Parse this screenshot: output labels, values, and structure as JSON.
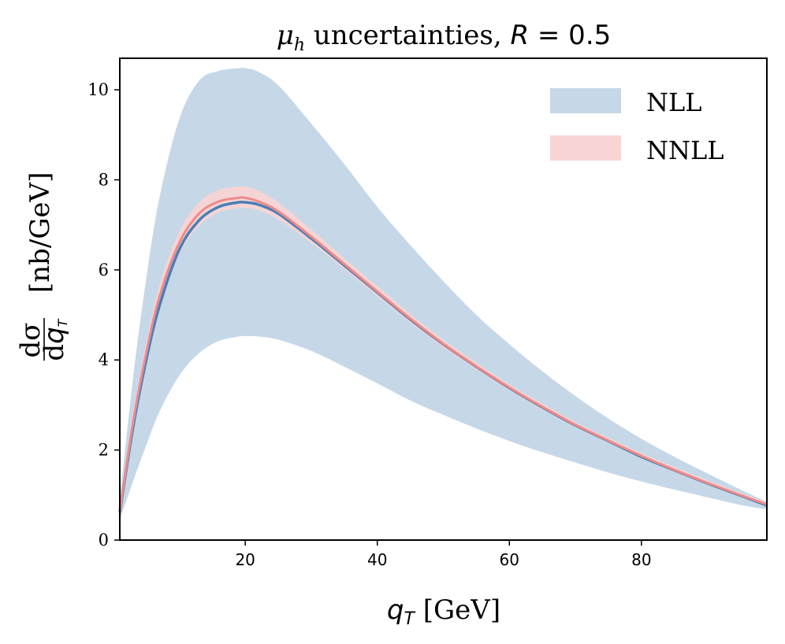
{
  "chart_data": {
    "type": "area",
    "title": "μh uncertainties, R = 0.5",
    "title_parts": {
      "sym": "μ",
      "sub": "h",
      "mid": " uncertainties, ",
      "var": "R",
      "eq": " = 0.5"
    },
    "xlabel": "qT [GeV]",
    "xlabel_parts": {
      "sym": "q",
      "sub": "T",
      "unit": " [GeV]"
    },
    "ylabel": "dσ/dqT [nb/GeV]",
    "ylabel_parts": {
      "num": "dσ",
      "den_d": "d",
      "den_q": "q",
      "den_sub": "T",
      "unit": "[nb/GeV]"
    },
    "xlim": [
      1,
      99
    ],
    "ylim": [
      0,
      10.7
    ],
    "xticks": [
      20,
      40,
      60,
      80
    ],
    "xtick_labels": [
      "20",
      "40",
      "60",
      "80"
    ],
    "yticks": [
      0,
      2,
      4,
      6,
      8,
      10
    ],
    "ytick_labels": [
      "0",
      "2",
      "4",
      "6",
      "8",
      "10"
    ],
    "grid": false,
    "legend_position": "top-right",
    "x": [
      1,
      3,
      5,
      7,
      10,
      13,
      16,
      19,
      20,
      22,
      25,
      30,
      35,
      40,
      45,
      50,
      55,
      60,
      65,
      70,
      75,
      80,
      85,
      90,
      95,
      99
    ],
    "series": [
      {
        "name": "NLL",
        "color": "#c6d8e8",
        "line_color": "#4a7fb5",
        "lower": [
          0.45,
          1.3,
          2.1,
          2.85,
          3.65,
          4.15,
          4.42,
          4.52,
          4.53,
          4.52,
          4.45,
          4.2,
          3.85,
          3.48,
          3.1,
          2.78,
          2.48,
          2.2,
          1.95,
          1.72,
          1.5,
          1.3,
          1.12,
          0.95,
          0.78,
          0.68
        ],
        "center": [
          0.62,
          2.5,
          4.0,
          5.2,
          6.45,
          7.1,
          7.4,
          7.5,
          7.5,
          7.45,
          7.25,
          6.7,
          6.1,
          5.5,
          4.9,
          4.35,
          3.85,
          3.38,
          2.95,
          2.55,
          2.2,
          1.85,
          1.55,
          1.26,
          0.99,
          0.77
        ],
        "upper": [
          0.9,
          3.6,
          5.8,
          7.6,
          9.35,
          10.2,
          10.42,
          10.48,
          10.48,
          10.4,
          10.1,
          9.25,
          8.35,
          7.4,
          6.55,
          5.75,
          5.0,
          4.35,
          3.75,
          3.2,
          2.7,
          2.25,
          1.85,
          1.48,
          1.12,
          0.85
        ]
      },
      {
        "name": "NNLL",
        "color": "#f8d4d4",
        "line_color": "#ee8a8a",
        "lower": [
          0.6,
          2.45,
          3.95,
          5.15,
          6.35,
          6.98,
          7.28,
          7.37,
          7.38,
          7.32,
          7.12,
          6.6,
          6.02,
          5.42,
          4.83,
          4.28,
          3.79,
          3.33,
          2.9,
          2.51,
          2.16,
          1.82,
          1.51,
          1.23,
          0.96,
          0.74
        ],
        "center": [
          0.64,
          2.6,
          4.15,
          5.4,
          6.6,
          7.25,
          7.52,
          7.6,
          7.6,
          7.52,
          7.3,
          6.74,
          6.13,
          5.52,
          4.92,
          4.36,
          3.86,
          3.39,
          2.96,
          2.56,
          2.21,
          1.87,
          1.56,
          1.27,
          1.0,
          0.79
        ],
        "upper": [
          0.68,
          2.75,
          4.35,
          5.65,
          6.85,
          7.5,
          7.78,
          7.85,
          7.85,
          7.76,
          7.5,
          6.9,
          6.26,
          5.64,
          5.02,
          4.45,
          3.94,
          3.46,
          3.03,
          2.62,
          2.27,
          1.93,
          1.62,
          1.33,
          1.05,
          0.84
        ]
      }
    ]
  }
}
